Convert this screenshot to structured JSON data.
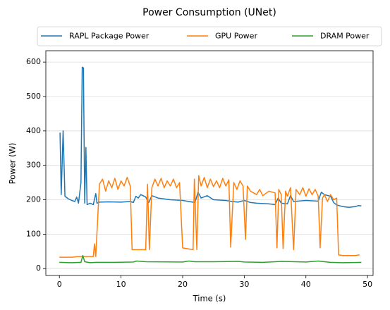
{
  "chart_data": {
    "type": "line",
    "title": "Power Consumption (UNet)",
    "xlabel": "Time (s)",
    "ylabel": "Power (W)",
    "xlim": [
      -2.2,
      50.9
    ],
    "xticks": [
      0,
      10,
      20,
      30,
      40,
      50
    ],
    "ylim": [
      -20,
      633
    ],
    "yticks": [
      0,
      100,
      200,
      300,
      400,
      500,
      600
    ],
    "grid": "y",
    "legend": "top",
    "series": [
      {
        "name": "RAPL Package Power",
        "color": "#1f77b4",
        "x": [
          0.1,
          0.3,
          0.6,
          0.9,
          1.5,
          2,
          2.5,
          2.8,
          3.1,
          3.5,
          3.7,
          3.9,
          4.1,
          4.3,
          4.5,
          5,
          5.5,
          5.9,
          6.1,
          6.5,
          8,
          10,
          11.5,
          12,
          12.4,
          12.8,
          13.2,
          14,
          14.5,
          15,
          16,
          18,
          20,
          21,
          22,
          22.5,
          23,
          24,
          25,
          27,
          28,
          29,
          30,
          31,
          32,
          34,
          35,
          35.5,
          36,
          37,
          37.5,
          38,
          40,
          42,
          42.5,
          43,
          44,
          44.5,
          45,
          46,
          47,
          48,
          48.5,
          49
        ],
        "values": [
          395,
          215,
          400,
          210,
          202,
          198,
          195,
          208,
          190,
          250,
          585,
          583,
          190,
          352,
          186,
          190,
          186,
          218,
          190,
          193,
          194,
          193,
          195,
          192,
          210,
          205,
          215,
          208,
          192,
          212,
          205,
          200,
          198,
          195,
          192,
          222,
          205,
          212,
          200,
          198,
          195,
          193,
          198,
          192,
          190,
          188,
          186,
          205,
          190,
          188,
          212,
          195,
          198,
          196,
          222,
          215,
          210,
          192,
          185,
          180,
          178,
          180,
          183,
          182
        ]
      },
      {
        "name": "GPU Power",
        "color": "#ff7f0e",
        "x": [
          0,
          2,
          3,
          4,
          5.5,
          5.7,
          5.9,
          6.2,
          6.5,
          7,
          7.5,
          8,
          8.5,
          9,
          9.5,
          10,
          10.5,
          11,
          11.5,
          11.8,
          14,
          14.3,
          14.6,
          15,
          15.5,
          16,
          16.5,
          17,
          17.5,
          18,
          18.5,
          19,
          19.5,
          20,
          21.7,
          21.9,
          22.3,
          22.6,
          23,
          23.5,
          24,
          24.5,
          25,
          25.5,
          26,
          26.5,
          27,
          27.5,
          27.8,
          28.3,
          28.8,
          29.3,
          29.8,
          30.2,
          30.5,
          31,
          32,
          32.5,
          33,
          34,
          35,
          35.3,
          35.6,
          36,
          36.3,
          36.7,
          37,
          37.5,
          38,
          38.4,
          39,
          39.5,
          40,
          40.5,
          41,
          41.5,
          42,
          42.3,
          42.7,
          43,
          43.5,
          44,
          44.5,
          45,
          45.3,
          46,
          48,
          48.7
        ],
        "values": [
          33,
          33,
          35,
          35,
          35,
          72,
          35,
          140,
          245,
          260,
          225,
          255,
          235,
          262,
          230,
          255,
          240,
          265,
          240,
          55,
          55,
          245,
          55,
          235,
          260,
          240,
          262,
          235,
          255,
          240,
          260,
          235,
          250,
          60,
          55,
          260,
          55,
          270,
          240,
          265,
          235,
          260,
          238,
          255,
          235,
          262,
          240,
          258,
          62,
          250,
          230,
          255,
          240,
          85,
          240,
          225,
          215,
          230,
          212,
          225,
          220,
          60,
          230,
          215,
          58,
          225,
          210,
          235,
          55,
          230,
          215,
          235,
          210,
          232,
          215,
          230,
          210,
          60,
          205,
          215,
          195,
          215,
          200,
          205,
          40,
          38,
          38,
          40
        ]
      },
      {
        "name": "DRAM Power",
        "color": "#2ca02c",
        "x": [
          0,
          2,
          3.5,
          3.8,
          4.1,
          5,
          6,
          9,
          12,
          12.5,
          14,
          20,
          21,
          22,
          25,
          29,
          30,
          33,
          35,
          36,
          40,
          42,
          44,
          46,
          49
        ],
        "values": [
          18,
          17,
          18,
          38,
          20,
          17,
          18,
          18,
          19,
          22,
          20,
          19,
          22,
          20,
          20,
          21,
          19,
          18,
          20,
          21,
          19,
          22,
          18,
          17,
          18
        ]
      }
    ]
  }
}
